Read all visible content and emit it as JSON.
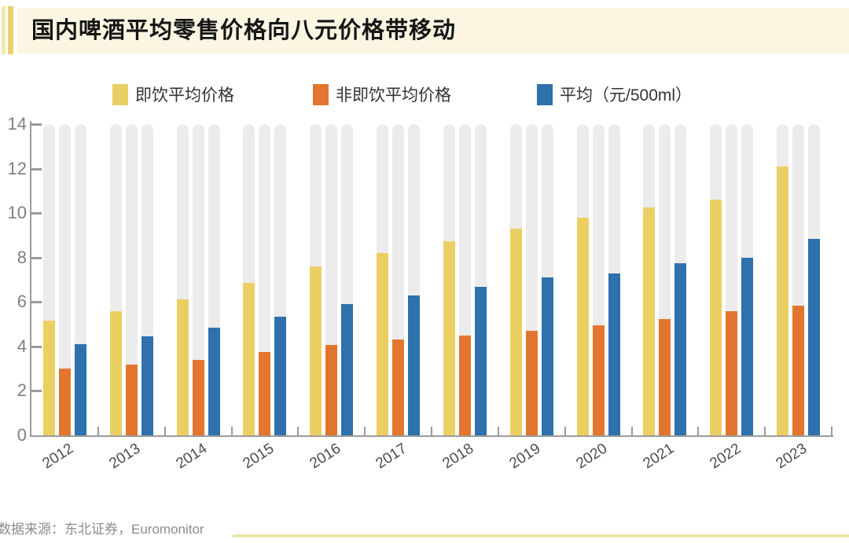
{
  "title": "国内啤酒平均零售价格向八元价格带移动",
  "legend": {
    "items": [
      {
        "label": "即饮平均价格",
        "color": "#EBCF62"
      },
      {
        "label": "非即饮平均价格",
        "color": "#E2762F"
      },
      {
        "label": "平均（元/500ml）",
        "color": "#2E71AC"
      }
    ]
  },
  "source": "数据来源：东北证券，Euromonitor",
  "colors": {
    "banner_bg": "#FBF5E2",
    "stripe_light": "#F4E7B0",
    "stripe_dark": "#ECD06A",
    "pill_bg": "#ECECEC",
    "axis": "#9B9B9B",
    "bottom_line": "#EAE6A4"
  },
  "chart_data": {
    "type": "bar",
    "title": "国内啤酒平均零售价格向八元价格带移动",
    "categories": [
      "2012",
      "2013",
      "2014",
      "2015",
      "2016",
      "2017",
      "2018",
      "2019",
      "2020",
      "2021",
      "2022",
      "2023"
    ],
    "series": [
      {
        "name": "即饮平均价格",
        "color": "#EBCF62",
        "values": [
          5.15,
          5.6,
          6.1,
          6.85,
          7.6,
          8.2,
          8.75,
          9.3,
          9.8,
          10.25,
          10.6,
          12.1
        ]
      },
      {
        "name": "非即饮平均价格",
        "color": "#E2762F",
        "values": [
          3.0,
          3.2,
          3.4,
          3.75,
          4.05,
          4.3,
          4.5,
          4.7,
          4.95,
          5.25,
          5.6,
          5.85
        ]
      },
      {
        "name": "平均（元/500ml）",
        "color": "#2E71AC",
        "values": [
          4.1,
          4.45,
          4.85,
          5.35,
          5.9,
          6.3,
          6.7,
          7.1,
          7.3,
          7.75,
          8.0,
          8.85
        ]
      }
    ],
    "xlabel": "",
    "ylabel": "",
    "ylim": [
      0,
      14
    ],
    "yticks": [
      0,
      2,
      4,
      6,
      8,
      10,
      12,
      14
    ],
    "grid": false,
    "legend_position": "top",
    "background_pills_to_max": true
  }
}
